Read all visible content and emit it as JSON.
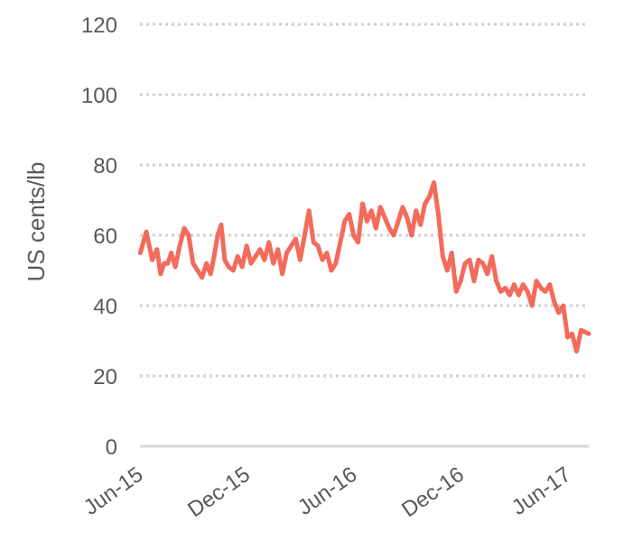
{
  "chart_data": {
    "type": "line",
    "ylabel": "US cents/lb",
    "ylim": [
      0,
      120
    ],
    "y_ticks": [
      0,
      20,
      40,
      60,
      80,
      100,
      120
    ],
    "y_tick_labels": [
      "0",
      "20",
      "40",
      "60",
      "80",
      "100",
      "120"
    ],
    "x_ticks": [
      "2015-06",
      "2015-12",
      "2016-06",
      "2016-12",
      "2017-06"
    ],
    "x_tick_labels": [
      "Jun-15",
      "Dec-15",
      "Jun-16",
      "Dec-16",
      "Jun-17"
    ],
    "xlim": [
      "2015-06",
      "2017-07"
    ],
    "grid": "horizontal dotted",
    "line_color": "#f26b5b",
    "grid_color": "#d0d0d0",
    "axis_color": "#d9d9d9",
    "series": [
      {
        "x": [
          "2015-06",
          "2015-06",
          "2015-06",
          "2015-07",
          "2015-07",
          "2015-07",
          "2015-07",
          "2015-07",
          "2015-08",
          "2015-08",
          "2015-08",
          "2015-08",
          "2015-09",
          "2015-09",
          "2015-09",
          "2015-09",
          "2015-10",
          "2015-10",
          "2015-10",
          "2015-10",
          "2015-10",
          "2015-11",
          "2015-11",
          "2015-11",
          "2015-11",
          "2015-12",
          "2015-12",
          "2015-12",
          "2015-12",
          "2016-01",
          "2016-01",
          "2016-01",
          "2016-01",
          "2016-02",
          "2016-02",
          "2016-02",
          "2016-02",
          "2016-03",
          "2016-03",
          "2016-03",
          "2016-03",
          "2016-04",
          "2016-04",
          "2016-04",
          "2016-04",
          "2016-05",
          "2016-05",
          "2016-05",
          "2016-05",
          "2016-06",
          "2016-06",
          "2016-06",
          "2016-06",
          "2016-07",
          "2016-07",
          "2016-07",
          "2016-07",
          "2016-08",
          "2016-08",
          "2016-08",
          "2016-08",
          "2016-09",
          "2016-09",
          "2016-09",
          "2016-09",
          "2016-10",
          "2016-10",
          "2016-10",
          "2016-10",
          "2016-11",
          "2016-11",
          "2016-11",
          "2016-11",
          "2016-12",
          "2016-12",
          "2016-12",
          "2016-12",
          "2017-01",
          "2017-01",
          "2017-01",
          "2017-01",
          "2017-02",
          "2017-02",
          "2017-02",
          "2017-02",
          "2017-03",
          "2017-03",
          "2017-03",
          "2017-03",
          "2017-04",
          "2017-04",
          "2017-04",
          "2017-04",
          "2017-05",
          "2017-05",
          "2017-05",
          "2017-05",
          "2017-06",
          "2017-06",
          "2017-06",
          "2017-06",
          "2017-07"
        ],
        "values": [
          55,
          61,
          53,
          56,
          49,
          52,
          52,
          55,
          51,
          57,
          62,
          60,
          52,
          50,
          48,
          52,
          49,
          54,
          60,
          63,
          53,
          51,
          50,
          54,
          51,
          57,
          52,
          54,
          56,
          53,
          58,
          52,
          56,
          49,
          55,
          57,
          59,
          53,
          60,
          67,
          58,
          57,
          53,
          55,
          50,
          52,
          58,
          64,
          66,
          60,
          58,
          69,
          64,
          67,
          62,
          68,
          65,
          62,
          60,
          64,
          68,
          65,
          60,
          67,
          63,
          69,
          71,
          75,
          66,
          54,
          50,
          55,
          44,
          47,
          52,
          53,
          47,
          53,
          52,
          49,
          54,
          47,
          44,
          45,
          43,
          46,
          43,
          46,
          44,
          40,
          47,
          45,
          44,
          46,
          41,
          38,
          40,
          31,
          32,
          27,
          33,
          32
        ]
      }
    ]
  }
}
